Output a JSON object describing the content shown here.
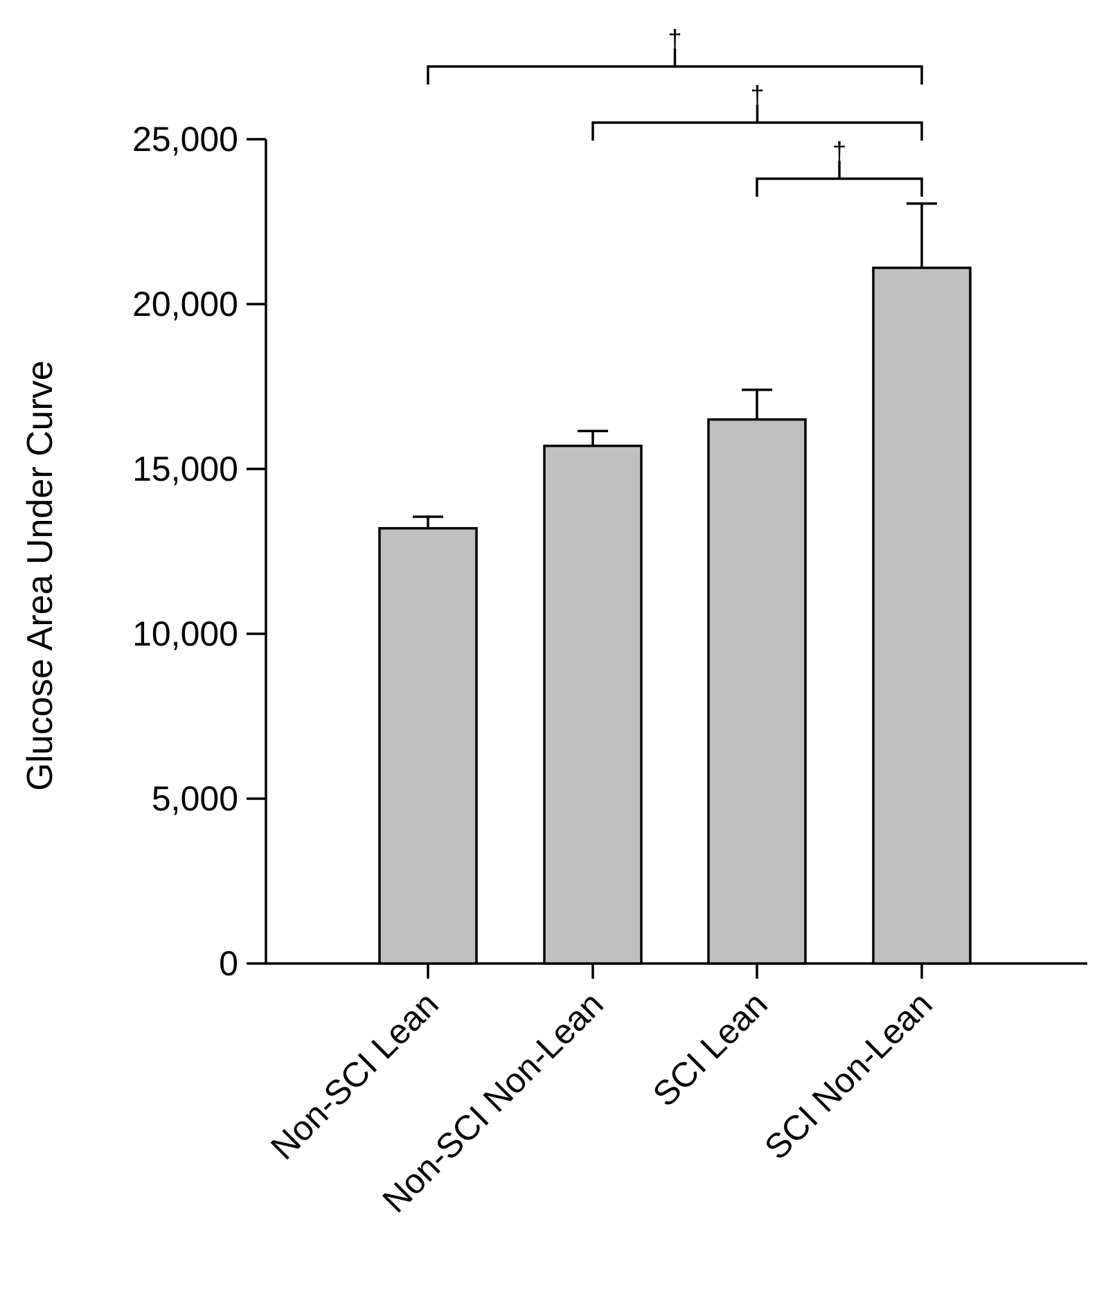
{
  "chart_data": {
    "type": "bar",
    "title": "",
    "xlabel": "",
    "ylabel": "Glucose Area Under Curve",
    "categories": [
      "Non-SCI Lean",
      "Non-SCI Non-Lean",
      "SCI Lean",
      "SCI Non-Lean"
    ],
    "values": [
      13200,
      15700,
      16500,
      21100
    ],
    "errors": [
      350,
      450,
      900,
      1950
    ],
    "ylim": [
      0,
      25000
    ],
    "yticks": [
      0,
      5000,
      10000,
      15000,
      20000,
      25000
    ],
    "ytick_labels": [
      "0",
      "5,000",
      "10,000",
      "15,000",
      "20,000",
      "25,000"
    ],
    "bar_color": "#c0c0c0",
    "grid": false,
    "significance": [
      {
        "from": "Non-SCI Lean",
        "to": "SCI Non-Lean",
        "mark": "†"
      },
      {
        "from": "Non-SCI Non-Lean",
        "to": "SCI Non-Lean",
        "mark": "†"
      },
      {
        "from": "SCI Lean",
        "to": "SCI Non-Lean",
        "mark": "†"
      }
    ]
  }
}
